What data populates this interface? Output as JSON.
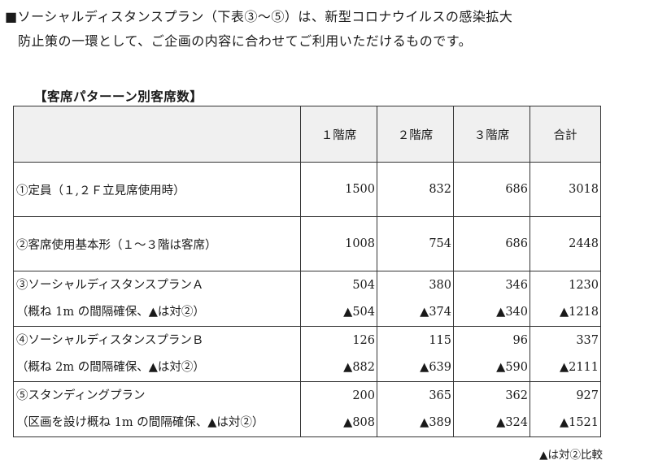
{
  "intro": {
    "line1": "■ソーシャルディスタンスプラン（下表③～⑤）は、新型コロナウイルスの感染拡大",
    "line2": "防止策の一環として、ご企画の内容に合わせてご利用いただけるものです。"
  },
  "caption": "【客席パターーン別客席数】",
  "table": {
    "headers": [
      "",
      "１階席",
      "２階席",
      "３階席",
      "合計"
    ],
    "rows": [
      {
        "label1": "①定員（１,２Ｆ立見席使用時）",
        "v1": [
          "1500",
          "832",
          "686",
          "3018"
        ]
      },
      {
        "label1": "②客席使用基本形（１～３階は客席）",
        "v1": [
          "1008",
          "754",
          "686",
          "2448"
        ]
      },
      {
        "label1": "③ソーシャルディスタンスプランＡ",
        "label2": "（概ね 1m の間隔確保、▲は対②）",
        "v1": [
          "504",
          "380",
          "346",
          "1230"
        ],
        "v2": [
          "▲504",
          "▲374",
          "▲340",
          "▲1218"
        ]
      },
      {
        "label1": "④ソーシャルディスタンスプランＢ",
        "label2": "（概ね 2m の間隔確保、▲は対②）",
        "v1": [
          "126",
          "115",
          "96",
          "337"
        ],
        "v2": [
          "▲882",
          "▲639",
          "▲590",
          "▲2111"
        ]
      },
      {
        "label1": "⑤スタンディングプラン",
        "label2": "（区画を設け概ね 1m の間隔確保、▲は対②）",
        "v1": [
          "200",
          "365",
          "362",
          "927"
        ],
        "v2": [
          "▲808",
          "▲389",
          "▲324",
          "▲1521"
        ]
      }
    ]
  },
  "note": "▲は対②比較"
}
